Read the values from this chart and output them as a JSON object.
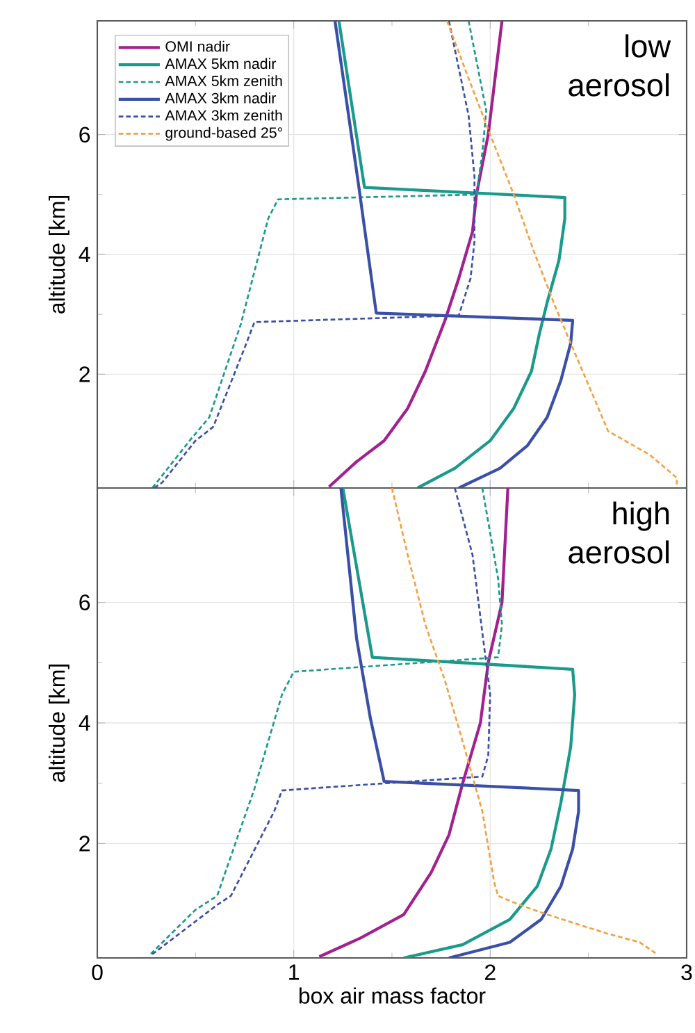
{
  "chart_data": [
    {
      "type": "line",
      "xlim": [
        0,
        3
      ],
      "ylim": [
        0.1,
        7.9
      ],
      "xticks": [
        0,
        1,
        2,
        3
      ],
      "yticks": [
        2,
        4,
        6
      ],
      "ylabel": "altitude [km]",
      "tick_labels": "y",
      "grid": true,
      "legend": "top left",
      "marker": "none",
      "annotations": [
        "low aerosol"
      ],
      "series": [
        {
          "name": "OMI nadir",
          "color": "#a3208f",
          "line_style": "solid",
          "x": [
            1.18,
            1.32,
            1.46,
            1.58,
            1.67,
            1.77,
            1.84,
            1.91,
            1.93,
            1.99,
            2.06
          ],
          "values": [
            0.12,
            0.54,
            0.89,
            1.43,
            2.05,
            2.9,
            3.6,
            4.38,
            5.0,
            6.0,
            7.9
          ]
        },
        {
          "name": "AMAX 5km nadir",
          "color": "#1a9a8a",
          "line_style": "solid",
          "x": [
            1.23,
            1.36,
            2.38,
            2.38,
            2.35,
            2.29,
            2.25,
            2.21,
            2.12,
            2.0,
            1.82,
            1.63
          ],
          "values": [
            7.9,
            5.12,
            4.95,
            4.6,
            3.9,
            3.2,
            2.67,
            2.05,
            1.43,
            0.89,
            0.43,
            0.1
          ]
        },
        {
          "name": "AMAX 5km zenith",
          "color": "#1a9a8a",
          "line_style": "dashed",
          "x": [
            1.89,
            1.98,
            1.96,
            1.93,
            0.92,
            0.87,
            0.73,
            0.57,
            0.47,
            0.28
          ],
          "values": [
            7.9,
            6.4,
            5.7,
            5.0,
            4.92,
            4.6,
            2.83,
            1.28,
            0.89,
            0.1
          ]
        },
        {
          "name": "AMAX 3km nadir",
          "color": "#3a4fa8",
          "line_style": "solid",
          "x": [
            1.21,
            1.33,
            1.42,
            2.42,
            2.41,
            2.36,
            2.29,
            2.19,
            2.05,
            1.84
          ],
          "values": [
            7.9,
            5.16,
            3.02,
            2.9,
            2.52,
            1.9,
            1.28,
            0.81,
            0.43,
            0.1
          ]
        },
        {
          "name": "AMAX 3km zenith",
          "color": "#3a4fa8",
          "line_style": "dashed",
          "x": [
            1.79,
            1.89,
            1.92,
            1.92,
            1.9,
            1.84,
            0.8,
            0.75,
            0.59,
            0.5,
            0.33,
            0.29
          ],
          "values": [
            7.9,
            6.32,
            5.3,
            4.22,
            3.6,
            2.98,
            2.87,
            2.44,
            1.12,
            0.89,
            0.19,
            0.1
          ]
        },
        {
          "name": "ground-based 25°",
          "color": "#f5a040",
          "line_style": "dashed",
          "x": [
            1.78,
            1.89,
            2.0,
            2.12,
            2.22,
            2.33,
            2.43,
            2.52,
            2.6,
            2.81,
            2.95,
            2.95
          ],
          "values": [
            7.9,
            6.94,
            6.0,
            5.0,
            4.07,
            3.14,
            2.36,
            1.67,
            1.05,
            0.66,
            0.27,
            0.1
          ]
        }
      ]
    },
    {
      "type": "line",
      "xlim": [
        0,
        3
      ],
      "ylim": [
        0.1,
        7.9
      ],
      "xticks": [
        0,
        1,
        2,
        3
      ],
      "yticks": [
        2,
        4,
        6
      ],
      "xlabel": "box air mass factor",
      "ylabel": "altitude [km]",
      "grid": true,
      "marker": "none",
      "annotations": [
        "high aerosol"
      ],
      "series": [
        {
          "color": "#a3208f",
          "line_style": "solid",
          "x": [
            1.13,
            1.34,
            1.56,
            1.7,
            1.79,
            1.86,
            1.95,
            1.99,
            2.06,
            2.09
          ],
          "values": [
            0.12,
            0.43,
            0.82,
            1.52,
            2.14,
            3.0,
            4.0,
            5.0,
            6.0,
            7.9
          ]
        },
        {
          "color": "#1a9a8a",
          "line_style": "solid",
          "x": [
            1.25,
            1.4,
            2.42,
            2.43,
            2.41,
            2.36,
            2.31,
            2.24,
            2.1,
            1.86,
            1.56
          ],
          "values": [
            7.9,
            5.09,
            4.89,
            4.47,
            3.61,
            2.68,
            1.91,
            1.29,
            0.74,
            0.32,
            0.1
          ]
        },
        {
          "color": "#1a9a8a",
          "line_style": "dashed",
          "x": [
            1.96,
            2.04,
            2.06,
            2.04,
            1.0,
            0.94,
            0.8,
            0.61,
            0.5,
            0.27
          ],
          "values": [
            7.9,
            6.4,
            5.63,
            5.09,
            4.85,
            4.47,
            2.91,
            1.13,
            0.9,
            0.16
          ]
        },
        {
          "color": "#3a4fa8",
          "line_style": "solid",
          "x": [
            1.24,
            1.32,
            1.39,
            1.46,
            2.45,
            2.45,
            2.42,
            2.36,
            2.26,
            2.1,
            1.79
          ],
          "values": [
            7.9,
            5.4,
            4.08,
            3.03,
            2.88,
            2.53,
            1.91,
            1.29,
            0.74,
            0.36,
            0.1
          ]
        },
        {
          "color": "#3a4fa8",
          "line_style": "dashed",
          "x": [
            1.82,
            1.91,
            2.0,
            1.99,
            1.96,
            0.94,
            0.9,
            0.68,
            0.61,
            0.28
          ],
          "values": [
            7.9,
            6.79,
            4.47,
            3.46,
            3.11,
            2.88,
            2.53,
            1.13,
            0.98,
            0.16
          ]
        },
        {
          "color": "#f5a040",
          "line_style": "dashed",
          "x": [
            1.5,
            1.58,
            1.67,
            1.77,
            1.86,
            1.96,
            2.02,
            2.04,
            2.15,
            2.29,
            2.59,
            2.76,
            2.85
          ],
          "values": [
            7.9,
            6.79,
            5.63,
            4.7,
            3.69,
            2.53,
            1.36,
            1.13,
            0.98,
            0.82,
            0.51,
            0.36,
            0.16
          ]
        }
      ]
    }
  ]
}
